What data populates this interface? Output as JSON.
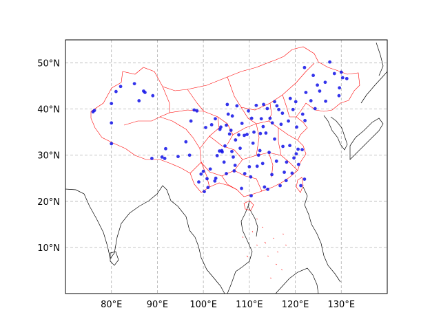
{
  "chart_data": {
    "type": "scatter",
    "projection": "equirectangular",
    "xlim": [
      70,
      140
    ],
    "ylim": [
      0,
      55
    ],
    "grid": true,
    "x_ticks": [
      80,
      90,
      100,
      110,
      120,
      130
    ],
    "x_tick_labels": [
      "80°E",
      "90°E",
      "100°E",
      "110°E",
      "120°E",
      "130°E"
    ],
    "y_ticks": [
      10,
      20,
      30,
      40,
      50
    ],
    "y_tick_labels": [
      "10°N",
      "20°N",
      "30°N",
      "40°N",
      "50°N"
    ],
    "colors": {
      "points": "#1010e8",
      "province_borders": "#ff0000",
      "coastlines": "#000000",
      "grid": "#b0b0b0"
    },
    "series": [
      {
        "points": [
          [
            76,
            39.4
          ],
          [
            76.3,
            39.7
          ],
          [
            80,
            41.2
          ],
          [
            80,
            37
          ],
          [
            80,
            32.5
          ],
          [
            81,
            43.8
          ],
          [
            82,
            44.9
          ],
          [
            85,
            45.5
          ],
          [
            86,
            41.8
          ],
          [
            87,
            43.9
          ],
          [
            87.3,
            43.6
          ],
          [
            89,
            42.9
          ],
          [
            88.8,
            29.3
          ],
          [
            91,
            29.6
          ],
          [
            91.6,
            29.3
          ],
          [
            91.8,
            31.4
          ],
          [
            94.5,
            29.7
          ],
          [
            96.2,
            32.9
          ],
          [
            97,
            30
          ],
          [
            97.3,
            37.4
          ],
          [
            98,
            39.8
          ],
          [
            98.6,
            39.6
          ],
          [
            99,
            24.2
          ],
          [
            99.5,
            25.9
          ],
          [
            100,
            26.5
          ],
          [
            100.2,
            22.1
          ],
          [
            100.5,
            36
          ],
          [
            100.8,
            24.9
          ],
          [
            101,
            23
          ],
          [
            101.5,
            27
          ],
          [
            101.8,
            36.6
          ],
          [
            102.5,
            24.4
          ],
          [
            102.6,
            37.9
          ],
          [
            102.7,
            25
          ],
          [
            103,
            29.9
          ],
          [
            103.5,
            30.9
          ],
          [
            103.6,
            35.6
          ],
          [
            103.8,
            36.1
          ],
          [
            104,
            31
          ],
          [
            104.1,
            30.7
          ],
          [
            104.5,
            28.5
          ],
          [
            104.7,
            32
          ],
          [
            105,
            26
          ],
          [
            105,
            36.5
          ],
          [
            105.2,
            41
          ],
          [
            105.4,
            38.9
          ],
          [
            105.7,
            34.6
          ],
          [
            106,
            35.4
          ],
          [
            106.2,
            30.8
          ],
          [
            106.3,
            38.5
          ],
          [
            106.5,
            29.6
          ],
          [
            106.7,
            26.6
          ],
          [
            106.9,
            27.8
          ],
          [
            107,
            33.3
          ],
          [
            107.3,
            40.7
          ],
          [
            107.7,
            34.4
          ],
          [
            108,
            31.5
          ],
          [
            108.3,
            22.8
          ],
          [
            108.4,
            36.9
          ],
          [
            108.9,
            34.3
          ],
          [
            109,
            26
          ],
          [
            109.5,
            34.5
          ],
          [
            109.8,
            39.6
          ],
          [
            110,
            27.5
          ],
          [
            110.3,
            25.3
          ],
          [
            110.4,
            21.2
          ],
          [
            110.5,
            38
          ],
          [
            110.8,
            32.6
          ],
          [
            111,
            35
          ],
          [
            111.5,
            40.8
          ],
          [
            111.7,
            27.6
          ],
          [
            112,
            30
          ],
          [
            112.3,
            31
          ],
          [
            112.4,
            34.7
          ],
          [
            112.6,
            37.9
          ],
          [
            112.9,
            28.2
          ],
          [
            113,
            36.2
          ],
          [
            113.3,
            23.1
          ],
          [
            113.6,
            34.8
          ],
          [
            113.9,
            40.1
          ],
          [
            114,
            22.6
          ],
          [
            114.3,
            30.6
          ],
          [
            114.5,
            38
          ],
          [
            114.9,
            25.8
          ],
          [
            115,
            37
          ],
          [
            115.5,
            33.5
          ],
          [
            115.9,
            28.7
          ],
          [
            116.4,
            39.9
          ],
          [
            116.7,
            23.4
          ],
          [
            116.9,
            36.7
          ],
          [
            117.2,
            39.1
          ],
          [
            117.3,
            31.9
          ],
          [
            117.6,
            26.3
          ],
          [
            118,
            24.5
          ],
          [
            118.1,
            28.5
          ],
          [
            118.5,
            37.4
          ],
          [
            118.8,
            32.1
          ],
          [
            119.3,
            26.1
          ],
          [
            119.5,
            39.9
          ],
          [
            119.7,
            29.4
          ],
          [
            120.2,
            30.3
          ],
          [
            120.3,
            36.1
          ],
          [
            120.7,
            28
          ],
          [
            120.6,
            31.3
          ],
          [
            121.2,
            23.4
          ],
          [
            121.5,
            31.2
          ],
          [
            121.6,
            38.9
          ],
          [
            122,
            24.8
          ],
          [
            122.1,
            37.5
          ],
          [
            123.4,
            41.8
          ],
          [
            123.9,
            47.3
          ],
          [
            124.3,
            40.1
          ],
          [
            125.3,
            43.9
          ],
          [
            126.5,
            45.8
          ],
          [
            126.6,
            41.7
          ],
          [
            127.5,
            50.2
          ],
          [
            128.5,
            47.7
          ],
          [
            129.6,
            44.6
          ],
          [
            130.3,
            46.8
          ],
          [
            131.2,
            46.6
          ],
          [
            122,
            49
          ],
          [
            130,
            48
          ],
          [
            129.5,
            42.9
          ],
          [
            124.8,
            45.2
          ],
          [
            116,
            40.7
          ],
          [
            113.1,
            41
          ],
          [
            118.9,
            42.3
          ],
          [
            122.3,
            43.6
          ],
          [
            120.1,
            41.6
          ],
          [
            115.5,
            41.6
          ]
        ]
      }
    ]
  }
}
